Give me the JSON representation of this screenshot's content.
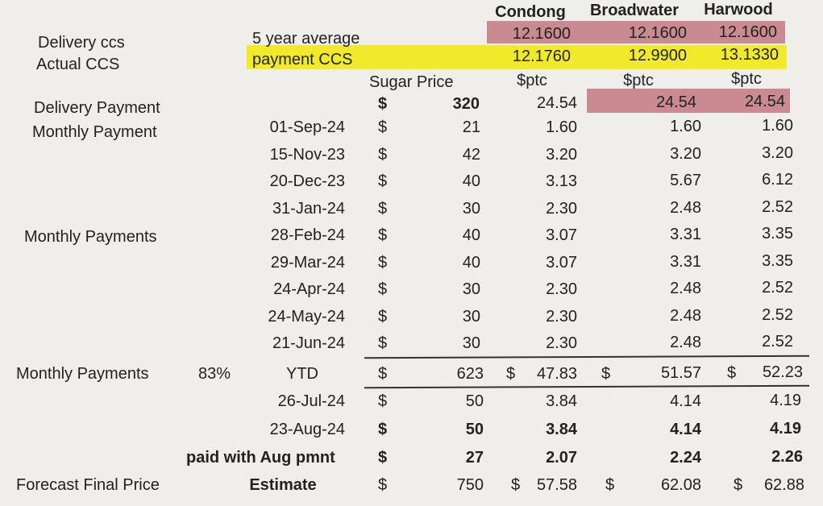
{
  "headers": {
    "condong": "Condong",
    "broadwater": "Broadwater",
    "harwood": "Harwood"
  },
  "labels": {
    "delivery_ccs": "Delivery ccs",
    "actual_ccs": "Actual CCS",
    "five_year_avg": "5 year average",
    "payment_ccs": "payment CCS",
    "sugar_price": "Sugar Price",
    "delivery_payment": "Delivery Payment",
    "monthly_payment": "Monthly Payment",
    "monthly_payments_mid": "Monthly Payments",
    "monthly_payments_ytd": "Monthly Payments",
    "ytd_pct": "83%",
    "ytd": "YTD",
    "paid_with_aug": "paid with Aug pmnt",
    "forecast_final": "Forecast Final Price",
    "estimate": "Estimate",
    "unit": "$ptc",
    "dollar": "$"
  },
  "five_year_average": {
    "condong": "12.1600",
    "broadwater": "12.1600",
    "harwood": "12.1600"
  },
  "payment_ccs": {
    "condong": "12.1760",
    "broadwater": "12.9900",
    "harwood": "13.1330"
  },
  "delivery_payment": {
    "sugar": "320",
    "condong": "24.54",
    "broadwater": "24.54",
    "harwood": "24.54"
  },
  "rows": [
    {
      "date": "01-Sep-24",
      "sugar": "21",
      "condong": "1.60",
      "broadwater": "1.60",
      "harwood": "1.60"
    },
    {
      "date": "15-Nov-23",
      "sugar": "42",
      "condong": "3.20",
      "broadwater": "3.20",
      "harwood": "3.20"
    },
    {
      "date": "20-Dec-23",
      "sugar": "40",
      "condong": "3.13",
      "broadwater": "5.67",
      "harwood": "6.12"
    },
    {
      "date": "31-Jan-24",
      "sugar": "30",
      "condong": "2.30",
      "broadwater": "2.48",
      "harwood": "2.52"
    },
    {
      "date": "28-Feb-24",
      "sugar": "40",
      "condong": "3.07",
      "broadwater": "3.31",
      "harwood": "3.35"
    },
    {
      "date": "29-Mar-24",
      "sugar": "40",
      "condong": "3.07",
      "broadwater": "3.31",
      "harwood": "3.35"
    },
    {
      "date": "24-Apr-24",
      "sugar": "30",
      "condong": "2.30",
      "broadwater": "2.48",
      "harwood": "2.52"
    },
    {
      "date": "24-May-24",
      "sugar": "30",
      "condong": "2.30",
      "broadwater": "2.48",
      "harwood": "2.52"
    },
    {
      "date": "21-Jun-24",
      "sugar": "30",
      "condong": "2.30",
      "broadwater": "2.48",
      "harwood": "2.52"
    }
  ],
  "ytd": {
    "sugar": "623",
    "condong": "47.83",
    "broadwater": "51.57",
    "harwood": "52.23"
  },
  "later_rows": [
    {
      "date": "26-Jul-24",
      "sugar": "50",
      "condong": "3.84",
      "broadwater": "4.14",
      "harwood": "4.19"
    },
    {
      "date": "23-Aug-24",
      "sugar": "50",
      "condong": "3.84",
      "broadwater": "4.14",
      "harwood": "4.19"
    }
  ],
  "paid_with_aug": {
    "sugar": "27",
    "condong": "2.07",
    "broadwater": "2.24",
    "harwood": "2.26"
  },
  "estimate": {
    "sugar": "750",
    "condong": "57.58",
    "broadwater": "62.08",
    "harwood": "62.88"
  }
}
